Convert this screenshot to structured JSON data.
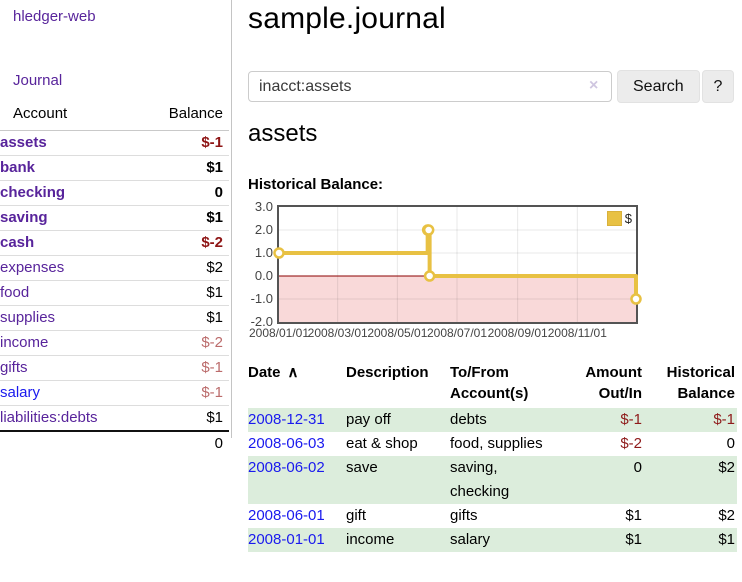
{
  "app": {
    "brand": "hledger-web",
    "nav_journal": "Journal"
  },
  "sidebar": {
    "headers": {
      "account": "Account",
      "balance": "Balance"
    },
    "rows": [
      {
        "account": "assets",
        "balance": "$-1"
      },
      {
        "account": "bank",
        "balance": "$1"
      },
      {
        "account": "checking",
        "balance": "0"
      },
      {
        "account": "saving",
        "balance": "$1"
      },
      {
        "account": "cash",
        "balance": "$-2"
      },
      {
        "account": "expenses",
        "balance": "$2"
      },
      {
        "account": "food",
        "balance": "$1"
      },
      {
        "account": "supplies",
        "balance": "$1"
      },
      {
        "account": "income",
        "balance": "$-2"
      },
      {
        "account": "gifts",
        "balance": "$-1"
      },
      {
        "account": "salary",
        "balance": "$-1"
      },
      {
        "account": "liabilities:debts",
        "balance": "$1"
      }
    ],
    "total": "0"
  },
  "header": {
    "title": "sample.journal"
  },
  "search": {
    "value": "inacct:assets",
    "clear_icon": "×",
    "button_label": "Search",
    "help_label": "?"
  },
  "account_page": {
    "heading": "assets",
    "chart_label": "Historical Balance:"
  },
  "chart_data": {
    "type": "line",
    "style": "step",
    "title": "Historical Balance",
    "series": [
      {
        "name": "$",
        "color": "#e8c143",
        "points": [
          [
            "2008-01-01",
            1
          ],
          [
            "2008-06-01",
            2
          ],
          [
            "2008-06-02",
            2
          ],
          [
            "2008-06-03",
            0
          ],
          [
            "2008-12-31",
            -1
          ]
        ]
      }
    ],
    "xlim": [
      "2008-01-01",
      "2008-12-31"
    ],
    "ylim": [
      -2,
      3
    ],
    "x_ticks": [
      {
        "date": "2008-01-01",
        "label": "2008/01/01"
      },
      {
        "date": "2008-03-01",
        "label": "2008/03/01"
      },
      {
        "date": "2008-05-01",
        "label": "2008/05/01"
      },
      {
        "date": "2008-07-01",
        "label": "2008/07/01"
      },
      {
        "date": "2008-09-01",
        "label": "2008/09/01"
      },
      {
        "date": "2008-11-01",
        "label": "2008/11/01"
      }
    ],
    "y_ticks": [
      3,
      2,
      1,
      0,
      -1,
      -2
    ],
    "grid": true,
    "legend_position": "top-right",
    "negative_region_fill": "#f9d9d9",
    "zero_line_color": "#8b0000",
    "marker": "open-circle"
  },
  "register": {
    "headers": {
      "date": "Date",
      "sort_icon": "∧",
      "description": "Description",
      "account": "To/From Account(s)",
      "amount": "Amount Out/In",
      "balance": "Historical Balance"
    },
    "rows": [
      {
        "date": "2008-12-31",
        "description": "pay off",
        "accounts": "debts",
        "amount": "$-1",
        "balance": "$-1"
      },
      {
        "date": "2008-06-03",
        "description": "eat & shop",
        "accounts": "food, supplies",
        "amount": "$-2",
        "balance": "0"
      },
      {
        "date": "2008-06-02",
        "description": "save",
        "accounts": "saving, checking",
        "amount": "0",
        "balance": "$2"
      },
      {
        "date": "2008-06-01",
        "description": "gift",
        "accounts": "gifts",
        "amount": "$1",
        "balance": "$2"
      },
      {
        "date": "2008-01-01",
        "description": "income",
        "accounts": "salary",
        "amount": "$1",
        "balance": "$1"
      }
    ]
  },
  "colors": {
    "link_purple": "#58249b",
    "link_blue": "#1a1aee",
    "negative_dark": "#8e1515",
    "negative_light": "#bb6b6b",
    "row_stripe_green": "#dceddc",
    "chart_line_gold": "#e8c143",
    "chart_negative_pink": "#f9d9d9",
    "chart_zero_line": "#8b0000"
  }
}
